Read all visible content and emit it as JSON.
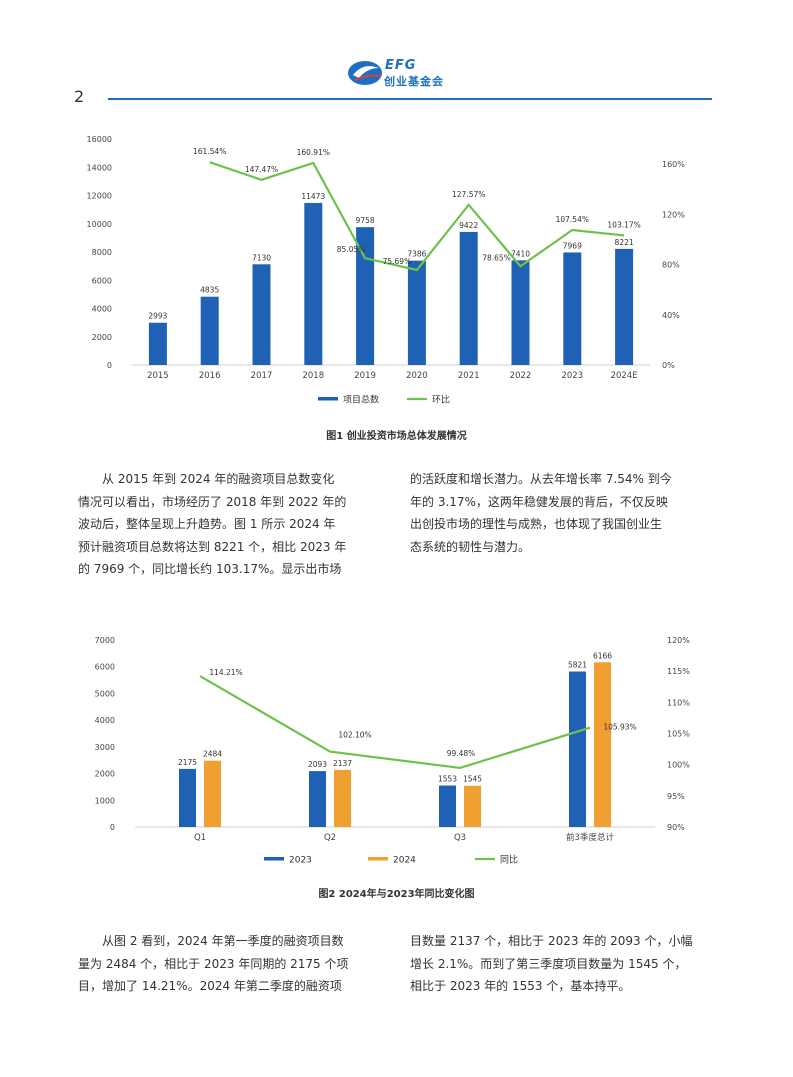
{
  "header": {
    "logo_text_top": "EFG",
    "logo_text_bottom": "创业基金会",
    "page_number": "2"
  },
  "figure1": {
    "caption": "图1   创业投资市场总体发展情况",
    "legend": {
      "bars": "项目总数",
      "line": "环比"
    }
  },
  "figure2": {
    "caption": "图2   2024年与2023年同比变化图",
    "legend": {
      "s2023": "2023",
      "s2024": "2024",
      "line": "同比"
    }
  },
  "paragraphs": {
    "p1_left": [
      "从 2015 年到 2024 年的融资项目总数变化",
      "情况可以看出，市场经历了 2018 年到 2022 年的",
      "波动后，整体呈现上升趋势。图 1 所示 2024 年",
      "预计融资项目总数将达到 8221 个，相比 2023 年",
      "的 7969 个，同比增长约 103.17%。显示出市场"
    ],
    "p1_right": [
      "的活跃度和增长潜力。从去年增长率 7.54% 到今",
      "年的 3.17%，这两年稳健发展的背后，不仅反映",
      "出创投市场的理性与成熟，也体现了我国创业生",
      "态系统的韧性与潜力。"
    ],
    "p2_left": [
      "从图 2 看到，2024 年第一季度的融资项目数",
      "量为 2484 个，相比于 2023 年同期的 2175 个项",
      "目，增加了 14.21%。2024 年第二季度的融资项"
    ],
    "p2_right": [
      "目数量 2137 个，相比于 2023 年的 2093 个，小幅",
      "增长 2.1%。而到了第三季度项目数量为 1545 个，",
      "相比于 2023 年的 1553 个，基本持平。"
    ]
  },
  "colors": {
    "blue": "#1f62b5",
    "orange": "#f0a030",
    "green": "#6cc24a",
    "brand": "#1f6fc1"
  },
  "chart_data": [
    {
      "type": "bar",
      "categories": [
        "2015",
        "2016",
        "2017",
        "2018",
        "2019",
        "2020",
        "2021",
        "2022",
        "2023",
        "2024E"
      ],
      "series": [
        {
          "name": "项目总数",
          "type": "bar",
          "axis": "left",
          "values": [
            2993,
            4835,
            7130,
            11473,
            9758,
            7386,
            9422,
            7410,
            7969,
            8221
          ],
          "labels": [
            "2993",
            "4835",
            "7130",
            "11473",
            "9758",
            "7386",
            "9422",
            "7410",
            "7969",
            "8221"
          ]
        },
        {
          "name": "环比",
          "type": "line",
          "axis": "right",
          "values": [
            null,
            161.54,
            147.47,
            160.91,
            85.05,
            75.69,
            127.57,
            78.65,
            107.54,
            103.17
          ],
          "labels": [
            "",
            "161.54%",
            "147.47%",
            "160.91%",
            "85.05%",
            "75.69%",
            "127.57%",
            "78.65%",
            "107.54%",
            "103.17%"
          ]
        }
      ],
      "ylim": [
        0,
        16000
      ],
      "yticks": [
        "0",
        "2000",
        "4000",
        "6000",
        "8000",
        "10000",
        "12000",
        "14000",
        "16000"
      ],
      "y2lim": [
        0,
        180
      ],
      "y2ticks": [
        "0%",
        "40%",
        "80%",
        "120%",
        "160%"
      ],
      "y2tick_values": [
        0,
        40,
        80,
        120,
        160
      ],
      "legend": "bottom"
    },
    {
      "type": "bar",
      "categories": [
        "Q1",
        "Q2",
        "Q3",
        "前3季度总计"
      ],
      "series": [
        {
          "name": "2023",
          "type": "bar",
          "axis": "left",
          "values": [
            2175,
            2093,
            1553,
            5821
          ],
          "labels": [
            "2175",
            "2093",
            "1553",
            "5821"
          ]
        },
        {
          "name": "2024",
          "type": "bar",
          "axis": "left",
          "values": [
            2484,
            2137,
            1545,
            6166
          ],
          "labels": [
            "2484",
            "2137",
            "1545",
            "6166"
          ]
        },
        {
          "name": "同比",
          "type": "line",
          "axis": "right",
          "values": [
            114.21,
            102.1,
            99.48,
            105.93
          ],
          "labels": [
            "114.21%",
            "102.10%",
            "99.48%",
            "105.93%"
          ]
        }
      ],
      "ylim": [
        0,
        7000
      ],
      "yticks": [
        "0",
        "1000",
        "2000",
        "3000",
        "4000",
        "5000",
        "6000",
        "7000"
      ],
      "y2lim": [
        90,
        120
      ],
      "y2ticks": [
        "90%",
        "95%",
        "100%",
        "105%",
        "110%",
        "115%",
        "120%"
      ],
      "y2tick_values": [
        90,
        95,
        100,
        105,
        110,
        115,
        120
      ],
      "legend": "bottom"
    }
  ]
}
